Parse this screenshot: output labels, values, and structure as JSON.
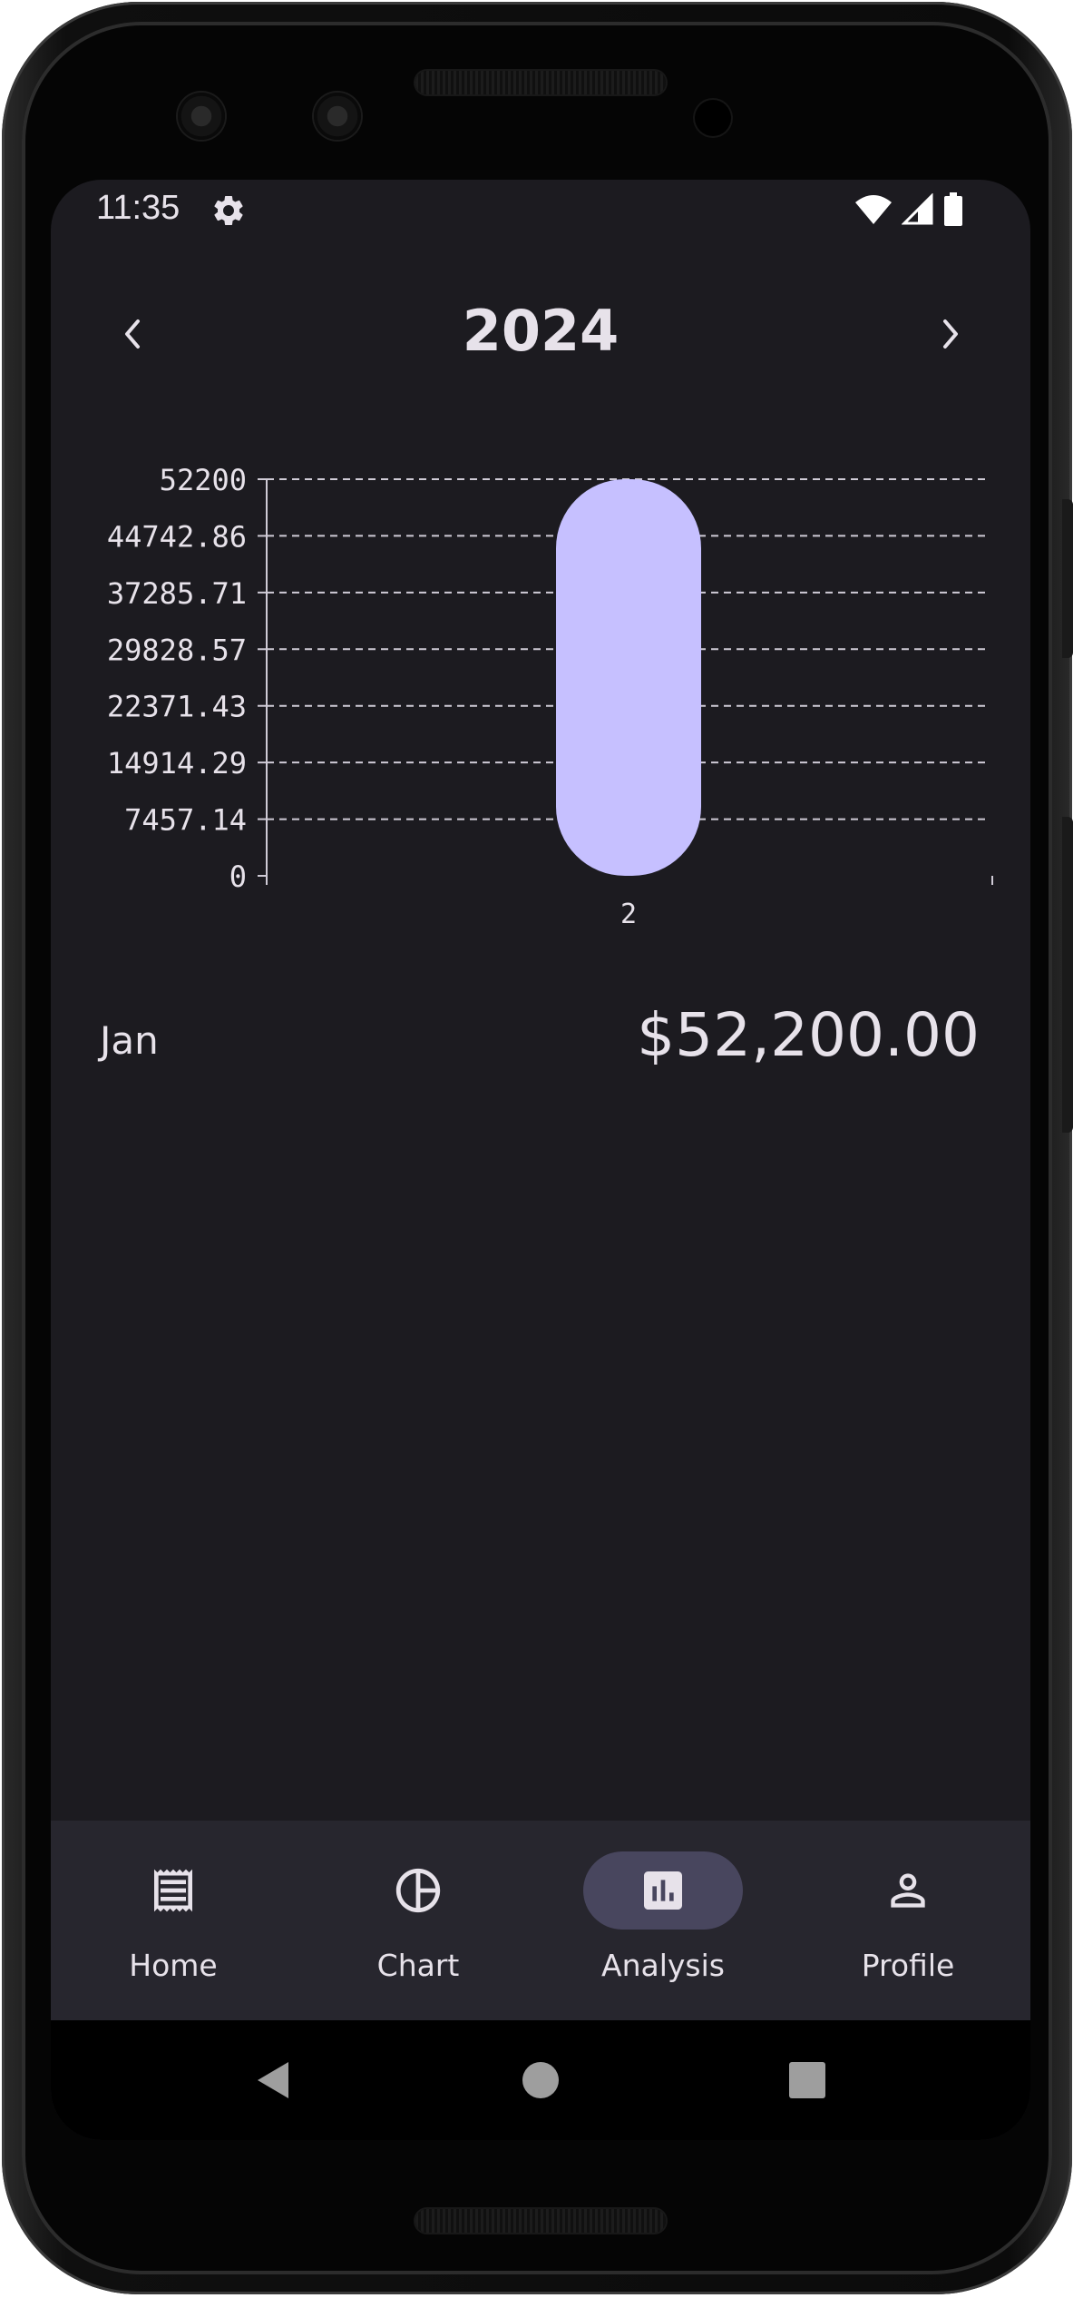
{
  "status_bar": {
    "time": "11:35",
    "settings_icon": "gear-icon",
    "wifi_icon": "wifi-icon",
    "signal_icon": "cell-signal-icon",
    "battery_icon": "battery-icon"
  },
  "header": {
    "year": "2024",
    "prev_icon": "chevron-left-icon",
    "next_icon": "chevron-right-icon"
  },
  "chart_data": {
    "type": "bar",
    "title": "",
    "xlabel": "",
    "ylabel": "",
    "categories": [
      "2"
    ],
    "values": [
      52200
    ],
    "ylim": [
      0,
      52200
    ],
    "y_ticks": [
      "52200",
      "44742.86",
      "37285.71",
      "29828.57",
      "22371.43",
      "14914.29",
      "7457.14",
      "0"
    ],
    "y_tick_values": [
      52200,
      44742.86,
      37285.71,
      29828.57,
      22371.43,
      14914.29,
      7457.14,
      0
    ],
    "grid": true,
    "bar_color": "#c6c0ff"
  },
  "summary": {
    "month": "Jan",
    "amount": "$52,200.00"
  },
  "bottom_nav": {
    "items": [
      {
        "label": "Home",
        "icon": "receipt-icon",
        "active": false
      },
      {
        "label": "Chart",
        "icon": "pie-chart-icon",
        "active": false
      },
      {
        "label": "Analysis",
        "icon": "bar-chart-icon",
        "active": true
      },
      {
        "label": "Profile",
        "icon": "person-icon",
        "active": false
      }
    ]
  },
  "system_nav": {
    "back_icon": "back-triangle-icon",
    "home_icon": "home-circle-icon",
    "recents_icon": "recents-square-icon"
  },
  "colors": {
    "background": "#1c1b20",
    "surface": "#27262e",
    "text": "#e7e2ea",
    "accent_bar": "#c6c0ff",
    "active_pill": "#48465e"
  }
}
